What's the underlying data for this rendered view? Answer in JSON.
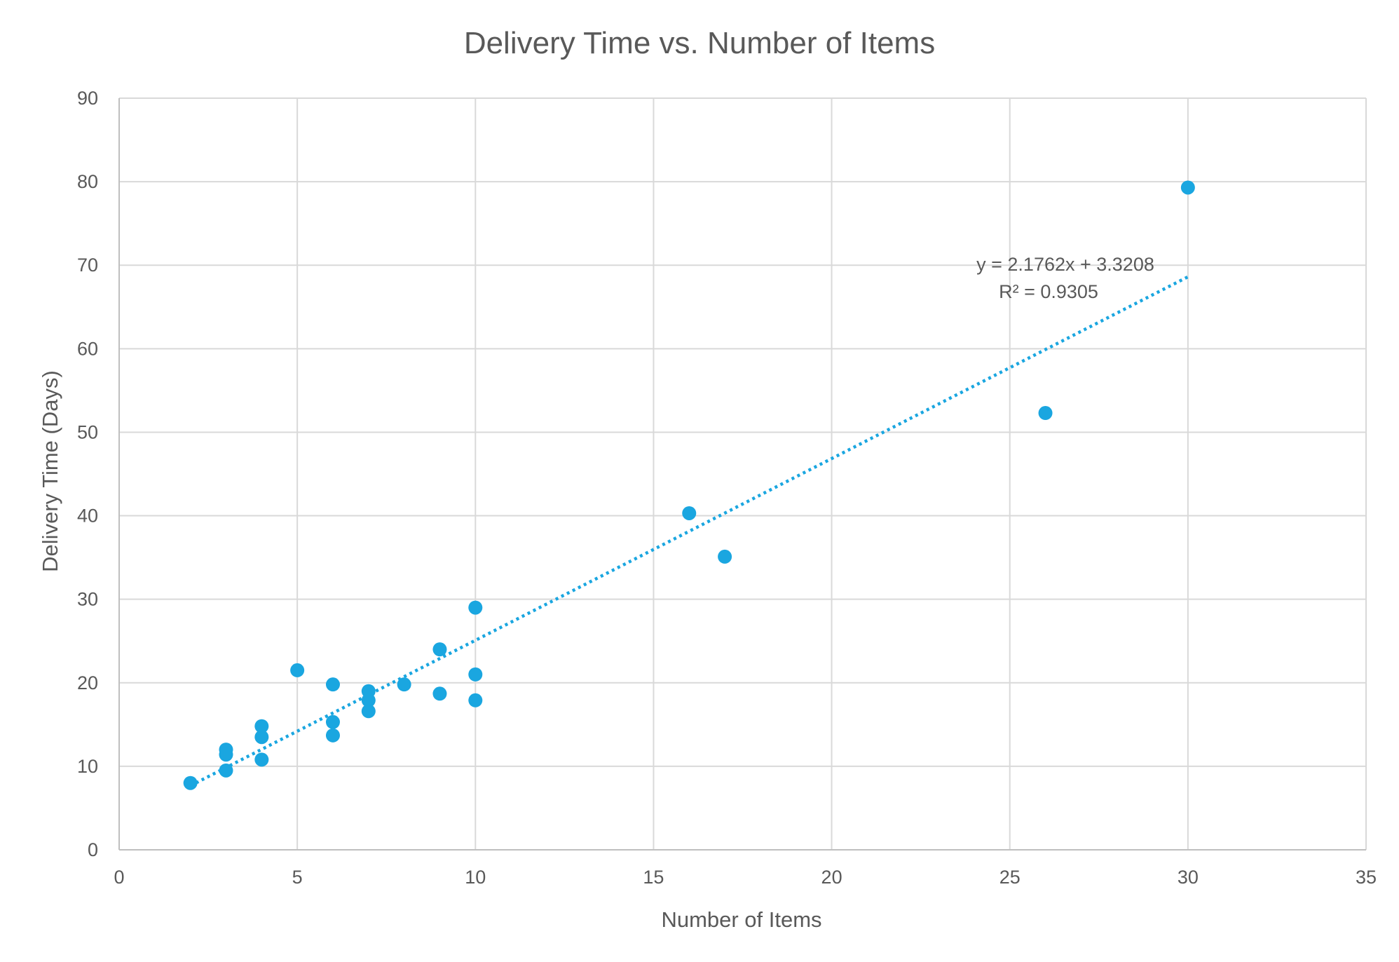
{
  "chart_data": {
    "type": "scatter",
    "title": "Delivery Time vs. Number of Items",
    "xlabel": "Number of Items",
    "ylabel": "Delivery Time (Days)",
    "xlim": [
      0,
      35
    ],
    "ylim": [
      0,
      90
    ],
    "x_ticks": [
      0,
      5,
      10,
      15,
      20,
      25,
      30,
      35
    ],
    "y_ticks": [
      0,
      10,
      20,
      30,
      40,
      50,
      60,
      70,
      80,
      90
    ],
    "grid": true,
    "legend": "none",
    "series": [
      {
        "color": "#1aa6e0",
        "points": [
          {
            "x": 2,
            "y": 8.0
          },
          {
            "x": 3,
            "y": 12.0
          },
          {
            "x": 3,
            "y": 11.4
          },
          {
            "x": 3,
            "y": 9.5
          },
          {
            "x": 4,
            "y": 14.8
          },
          {
            "x": 4,
            "y": 13.5
          },
          {
            "x": 4,
            "y": 10.8
          },
          {
            "x": 5,
            "y": 21.5
          },
          {
            "x": 6,
            "y": 19.8
          },
          {
            "x": 6,
            "y": 15.3
          },
          {
            "x": 6,
            "y": 13.7
          },
          {
            "x": 7,
            "y": 19.0
          },
          {
            "x": 7,
            "y": 17.9
          },
          {
            "x": 7,
            "y": 16.6
          },
          {
            "x": 8,
            "y": 19.8
          },
          {
            "x": 9,
            "y": 24.0
          },
          {
            "x": 9,
            "y": 18.7
          },
          {
            "x": 10,
            "y": 29.0
          },
          {
            "x": 10,
            "y": 21.0
          },
          {
            "x": 10,
            "y": 17.9
          },
          {
            "x": 16,
            "y": 40.3
          },
          {
            "x": 17,
            "y": 35.1
          },
          {
            "x": 26,
            "y": 52.3
          },
          {
            "x": 30,
            "y": 79.3
          }
        ]
      }
    ],
    "trendline": {
      "type": "linear",
      "style": "dotted",
      "color": "#1aa6e0",
      "slope": 2.1762,
      "intercept": 3.3208,
      "x_range": [
        2,
        30
      ],
      "equation_label": "y = 2.1762x + 3.3208",
      "r2_label": "R² = 0.9305"
    }
  }
}
